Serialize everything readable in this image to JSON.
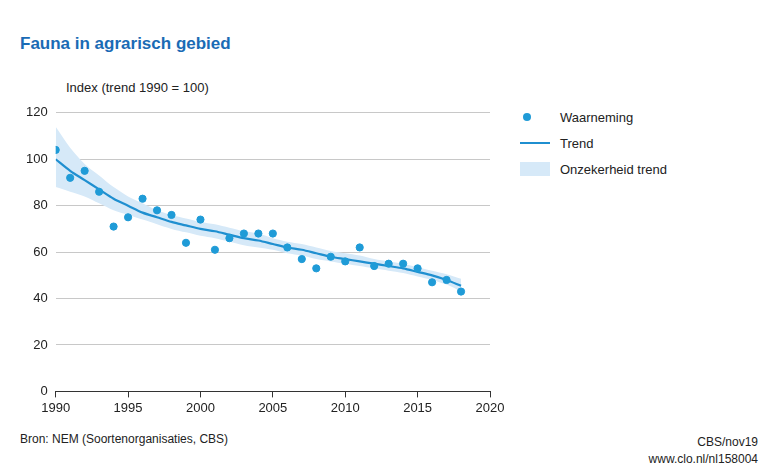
{
  "chart_data": {
    "type": "line",
    "title": "Fauna in agrarisch gebied",
    "y_label": "Index (trend 1990 = 100)",
    "source": "Bron: NEM (Soortenorganisaties, CBS)",
    "notes": [
      "CBS/nov19",
      "www.clo.nl/nl158004"
    ],
    "x": [
      1990,
      1991,
      1992,
      1993,
      1994,
      1995,
      1996,
      1997,
      1998,
      1999,
      2000,
      2001,
      2002,
      2003,
      2004,
      2005,
      2006,
      2007,
      2008,
      2009,
      2010,
      2011,
      2012,
      2013,
      2014,
      2015,
      2016,
      2017,
      2018
    ],
    "series": [
      {
        "name": "Waarneming",
        "type": "scatter",
        "marker": "circle",
        "color": "#1f9bd7",
        "values": [
          104,
          92,
          95,
          86,
          71,
          75,
          83,
          78,
          76,
          64,
          74,
          61,
          66,
          68,
          68,
          68,
          62,
          57,
          53,
          58,
          56,
          62,
          54,
          55,
          55,
          53,
          47,
          48,
          43
        ]
      },
      {
        "name": "Trend",
        "type": "line",
        "line_style": "solid",
        "color": "#1f8fd0",
        "values": [
          100,
          95,
          91,
          87,
          83,
          80,
          77,
          75,
          73,
          71.5,
          70,
          69,
          67.5,
          66,
          65,
          63.5,
          62,
          61,
          59.5,
          58,
          57,
          56,
          55,
          54,
          53,
          51.5,
          50,
          48,
          45.5
        ]
      },
      {
        "name": "Onzekerheid trend",
        "type": "area",
        "color": "#d6e9f8",
        "lower": [
          88,
          86,
          84,
          81,
          78,
          76,
          74,
          72,
          70,
          68.5,
          67,
          66,
          64.5,
          63,
          62,
          61,
          59.5,
          58.5,
          57,
          56,
          55,
          54,
          53,
          52,
          51,
          49.5,
          48,
          46,
          43
        ],
        "upper": [
          114,
          105,
          98,
          93,
          88,
          84,
          81,
          78,
          76,
          74.5,
          73,
          72,
          70.5,
          69,
          68,
          66,
          64.5,
          63.5,
          62,
          60.5,
          59.5,
          58.5,
          57,
          56,
          55,
          53.5,
          52,
          50.5,
          48.5
        ]
      }
    ],
    "xlim": [
      1990,
      2020
    ],
    "xticks": [
      1990,
      1995,
      2000,
      2005,
      2010,
      2015,
      2020
    ],
    "ylim": [
      0,
      120
    ],
    "yticks": [
      0,
      20,
      40,
      60,
      80,
      100,
      120
    ],
    "grid": true,
    "legend": "right"
  }
}
